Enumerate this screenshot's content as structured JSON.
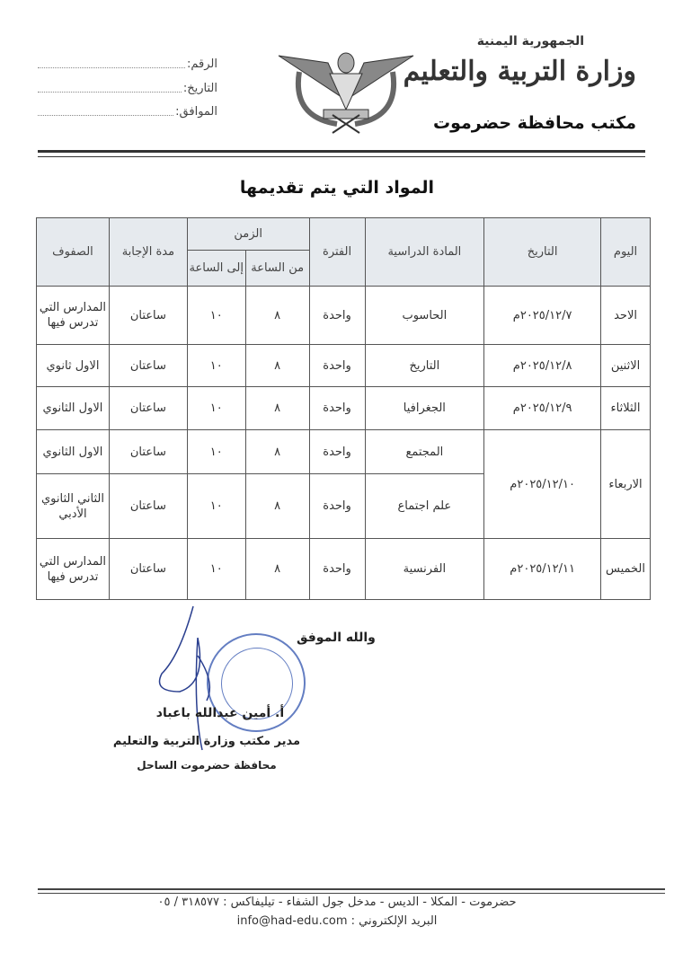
{
  "header": {
    "republic": "الجمهورية اليمنية",
    "ministry": "وزارة التربية والتعليم",
    "office": "مكتب محافظة حضرموت",
    "fields": {
      "number": "الرقم:",
      "date": "التاريخ:",
      "corresponding": "الموافق:"
    }
  },
  "title": "المواد التي يتم تقديمها",
  "table": {
    "headers": {
      "day": "اليوم",
      "date": "التاريخ",
      "subject": "المادة الدراسية",
      "period": "الفترة",
      "time": "الزمن",
      "from": "من الساعة",
      "to": "إلى الساعة",
      "duration": "مدة الإجابة",
      "grades": "الصفوف"
    },
    "rows": [
      {
        "day": "الاحد",
        "date": "٢٠٢٥/١٢/٧م",
        "subject": "الحاسوب",
        "period": "واحدة",
        "from": "٨",
        "to": "١٠",
        "duration": "ساعتان",
        "grades": "المدارس التي تدرس فيها"
      },
      {
        "day": "الاثنين",
        "date": "٢٠٢٥/١٢/٨م",
        "subject": "التاريخ",
        "period": "واحدة",
        "from": "٨",
        "to": "١٠",
        "duration": "ساعتان",
        "grades": "الاول ثانوي"
      },
      {
        "day": "الثلاثاء",
        "date": "٢٠٢٥/١٢/٩م",
        "subject": "الجغرافيا",
        "period": "واحدة",
        "from": "٨",
        "to": "١٠",
        "duration": "ساعتان",
        "grades": "الاول الثانوي"
      },
      {
        "day": "الاربعاء",
        "date": "٢٠٢٥/١٢/١٠م",
        "subject": "المجتمع",
        "period": "واحدة",
        "from": "٨",
        "to": "١٠",
        "duration": "ساعتان",
        "grades": "الاول الثانوي"
      },
      {
        "subject": "علم اجتماع",
        "period": "واحدة",
        "from": "٨",
        "to": "١٠",
        "duration": "ساعتان",
        "grades": "الثاني الثانوي الأدبي"
      },
      {
        "day": "الخميس",
        "date": "٢٠٢٥/١٢/١١م",
        "subject": "الفرنسية",
        "period": "واحدة",
        "from": "٨",
        "to": "١٠",
        "duration": "ساعتان",
        "grades": "المدارس التي تدرس فيها"
      }
    ]
  },
  "signature": {
    "closing": "والله الموفق",
    "name": "أ. أمين عبدالله باعباد",
    "role": "مدير مكتب وزارة التربية والتعليم",
    "location": "محافظة حضرموت الساحل"
  },
  "footer": {
    "address": "حضرموت - المكلا - الديس - مدخل جول الشفاء - تيليفاكس : ٣١٨٥٧٧ / ٠٥",
    "email": "البريد الإلكتروني : info@had-edu.com"
  }
}
